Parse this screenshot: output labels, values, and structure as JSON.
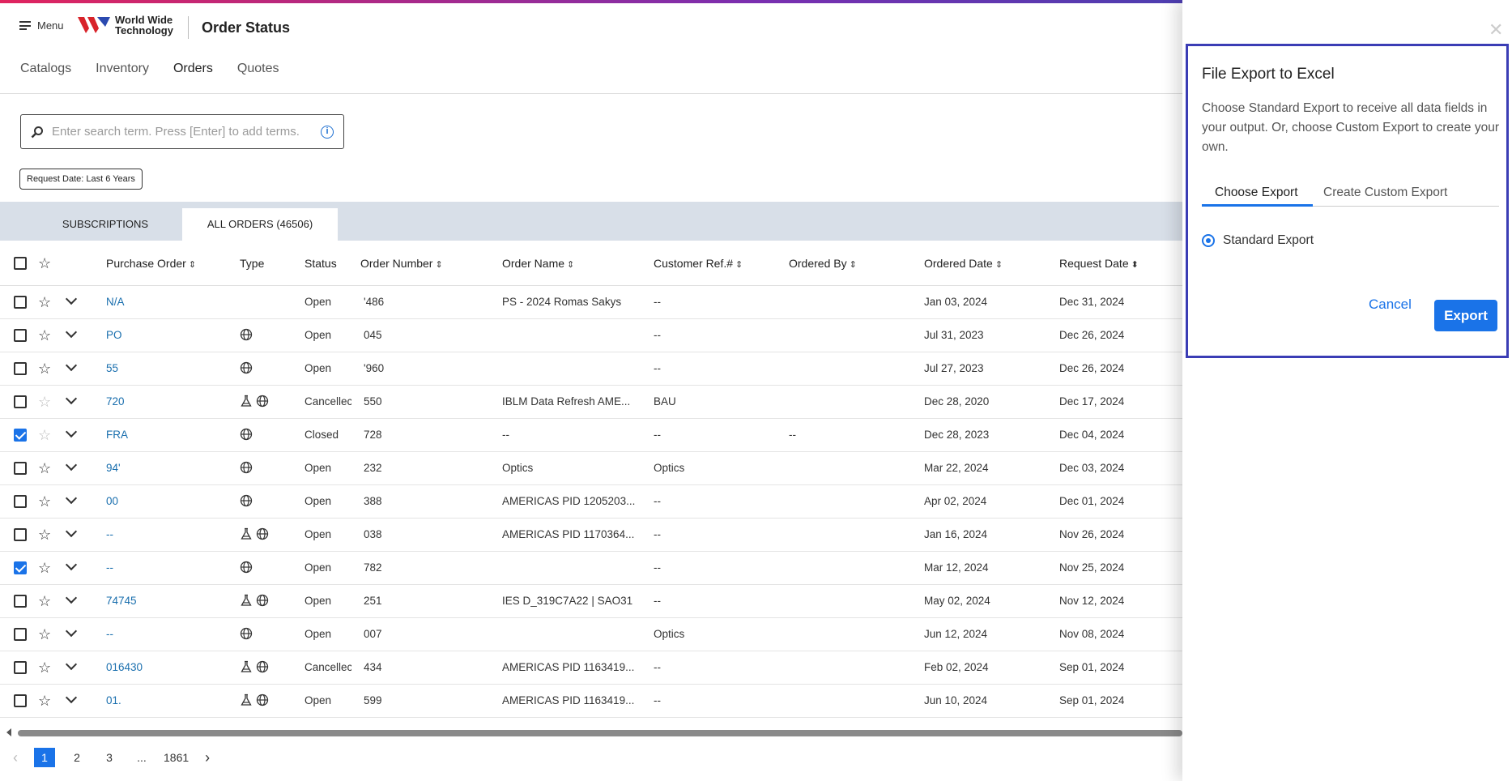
{
  "header": {
    "menu_label": "Menu",
    "logo_line1": "World Wide",
    "logo_line2": "Technology",
    "title": "Order Status"
  },
  "nav": [
    "Catalogs",
    "Inventory",
    "Orders",
    "Quotes"
  ],
  "search": {
    "placeholder": "Enter search term. Press [Enter] to add terms."
  },
  "filter_chip": "Request Date: Last 6 Years",
  "tabs": {
    "subscriptions": "SUBSCRIPTIONS",
    "all_orders": "ALL ORDERS (46506)"
  },
  "columns": {
    "purchase_order": "Purchase Order",
    "type": "Type",
    "status": "Status",
    "order_number": "Order Number",
    "order_name": "Order Name",
    "customer_ref": "Customer Ref.#",
    "ordered_by": "Ordered By",
    "ordered_date": "Ordered Date",
    "request_date": "Request Date"
  },
  "rows": [
    {
      "checked": false,
      "star_dim": false,
      "po": "N/A",
      "type": "",
      "status": "Open",
      "order_number": "'486",
      "order_name": "PS - 2024 Romas Sakys",
      "customer_ref": "--",
      "ordered_by": "",
      "ordered_date": "Jan 03, 2024",
      "request_date": "Dec 31, 2024"
    },
    {
      "checked": false,
      "star_dim": false,
      "po": "PO",
      "type": "globe",
      "status": "Open",
      "order_number": "045",
      "order_name": "",
      "customer_ref": "--",
      "ordered_by": "",
      "ordered_date": "Jul 31, 2023",
      "request_date": "Dec 26, 2024"
    },
    {
      "checked": false,
      "star_dim": false,
      "po": "55",
      "type": "globe",
      "status": "Open",
      "order_number": "'960",
      "order_name": "",
      "customer_ref": "--",
      "ordered_by": "",
      "ordered_date": "Jul 27, 2023",
      "request_date": "Dec 26, 2024"
    },
    {
      "checked": false,
      "star_dim": true,
      "po": "720",
      "type": "flask-globe",
      "status": "Cancellec",
      "order_number": "550",
      "order_name": "IBLM Data Refresh AME...",
      "customer_ref": "BAU",
      "ordered_by": "",
      "ordered_date": "Dec 28, 2020",
      "request_date": "Dec 17, 2024"
    },
    {
      "checked": true,
      "star_dim": true,
      "po": "FRA",
      "type": "globe",
      "status": "Closed",
      "order_number": "728",
      "order_name": "--",
      "customer_ref": "--",
      "ordered_by": "--",
      "ordered_date": "Dec 28, 2023",
      "request_date": "Dec 04, 2024"
    },
    {
      "checked": false,
      "star_dim": false,
      "po": "94'",
      "type": "globe",
      "status": "Open",
      "order_number": "232",
      "order_name": "Optics",
      "customer_ref": "Optics",
      "ordered_by": "",
      "ordered_date": "Mar 22, 2024",
      "request_date": "Dec 03, 2024"
    },
    {
      "checked": false,
      "star_dim": false,
      "po": "00",
      "type": "globe",
      "status": "Open",
      "order_number": "388",
      "order_name": "AMERICAS PID 1205203...",
      "customer_ref": "--",
      "ordered_by": "",
      "ordered_date": "Apr 02, 2024",
      "request_date": "Dec 01, 2024"
    },
    {
      "checked": false,
      "star_dim": false,
      "po": "--",
      "type": "flask-globe",
      "status": "Open",
      "order_number": "038",
      "order_name": "AMERICAS PID 1170364...",
      "customer_ref": "--",
      "ordered_by": "",
      "ordered_date": "Jan 16, 2024",
      "request_date": "Nov 26, 2024"
    },
    {
      "checked": true,
      "star_dim": false,
      "po": "--",
      "type": "globe",
      "status": "Open",
      "order_number": "782",
      "order_name": "",
      "customer_ref": "--",
      "ordered_by": "",
      "ordered_date": "Mar 12, 2024",
      "request_date": "Nov 25, 2024"
    },
    {
      "checked": false,
      "star_dim": false,
      "po": "74745",
      "type": "flask-globe",
      "status": "Open",
      "order_number": "251",
      "order_name": "IES D_319C7A22 | SAO31",
      "customer_ref": "--",
      "ordered_by": "",
      "ordered_date": "May 02, 2024",
      "request_date": "Nov 12, 2024"
    },
    {
      "checked": false,
      "star_dim": false,
      "po": "--",
      "type": "globe",
      "status": "Open",
      "order_number": "007",
      "order_name": "",
      "customer_ref": "Optics",
      "ordered_by": "",
      "ordered_date": "Jun 12, 2024",
      "request_date": "Nov 08, 2024"
    },
    {
      "checked": false,
      "star_dim": false,
      "po": "016430",
      "type": "flask-globe",
      "status": "Cancellec",
      "order_number": "434",
      "order_name": "AMERICAS PID 1163419...",
      "customer_ref": "--",
      "ordered_by": "",
      "ordered_date": "Feb 02, 2024",
      "request_date": "Sep 01, 2024"
    },
    {
      "checked": false,
      "star_dim": false,
      "po": "01.",
      "type": "flask-globe",
      "status": "Open",
      "order_number": "599",
      "order_name": "AMERICAS PID 1163419...",
      "customer_ref": "--",
      "ordered_by": "",
      "ordered_date": "Jun 10, 2024",
      "request_date": "Sep 01, 2024"
    }
  ],
  "pager": {
    "pages": [
      "1",
      "2",
      "3",
      "...",
      "1861"
    ],
    "current": "1"
  },
  "export_dialog": {
    "title": "File Export to Excel",
    "description": "Choose Standard Export to receive all data fields in your output. Or, choose Custom Export to create your own.",
    "tab_choose": "Choose Export",
    "tab_custom": "Create Custom Export",
    "option_standard": "Standard Export",
    "cancel_label": "Cancel",
    "export_label": "Export"
  },
  "colors": {
    "accent": "#1a73e8",
    "link": "#1a6fae",
    "dialog_border": "#3b3db5",
    "tab_bar": "#d8dfe8"
  }
}
